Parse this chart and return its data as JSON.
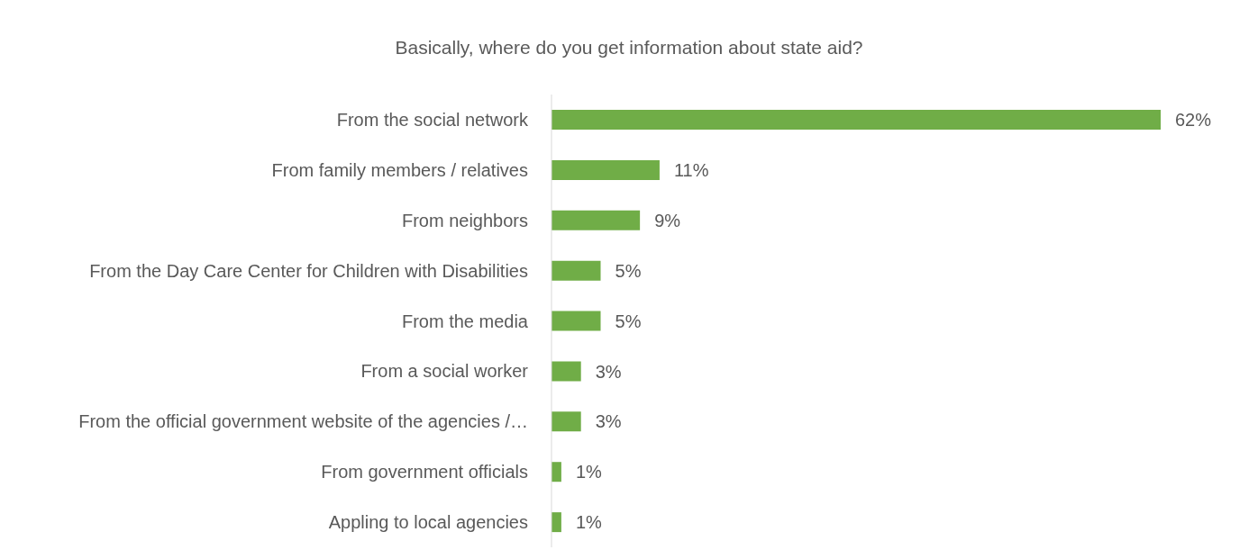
{
  "chart_data": {
    "type": "bar",
    "orientation": "horizontal",
    "title": "Basically, where do you get information about state aid?",
    "categories": [
      "From the social network",
      "From family members / relatives",
      "From neighbors",
      "From the Day Care Center for Children with Disabilities",
      "From the media",
      "From a social worker",
      "From the official government website of the agencies /…",
      "From government officials",
      "Appling to local agencies"
    ],
    "values": [
      62,
      11,
      9,
      5,
      5,
      3,
      3,
      1,
      1
    ],
    "value_labels": [
      "62%",
      "11%",
      "9%",
      "5%",
      "5%",
      "3%",
      "3%",
      "1%",
      "1%"
    ],
    "color": "#70ad47"
  }
}
